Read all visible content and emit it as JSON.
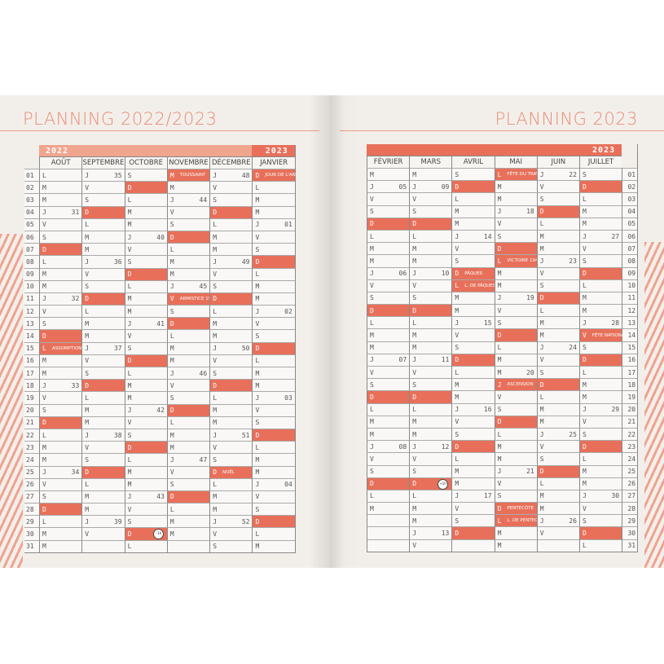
{
  "colors": {
    "accent": "#e8705a",
    "light_accent": "#f0a58e",
    "title": "#eb8c74"
  },
  "row_labels": [
    "01",
    "02",
    "03",
    "04",
    "05",
    "06",
    "07",
    "08",
    "09",
    "10",
    "11",
    "12",
    "13",
    "14",
    "15",
    "16",
    "17",
    "18",
    "19",
    "20",
    "21",
    "22",
    "23",
    "24",
    "25",
    "26",
    "27",
    "28",
    "29",
    "30",
    "31"
  ],
  "left": {
    "title": "PLANNING 2022/2023",
    "years": [
      "2022",
      "2023"
    ],
    "months": [
      {
        "name": "AOÛT",
        "days": [
          "L",
          "M",
          "M",
          "J 31",
          "V",
          "S",
          "D",
          "L",
          "M",
          "M",
          "J 32",
          "V",
          "S",
          "D",
          "L|ASSOMPTION",
          "M",
          "M",
          "J 33",
          "V",
          "S",
          "D",
          "L",
          "M",
          "M",
          "J 34",
          "V",
          "S",
          "D",
          "L",
          "M",
          "M"
        ]
      },
      {
        "name": "SEPTEMBRE",
        "days": [
          "J 35",
          "V",
          "S",
          "D",
          "L",
          "M",
          "M",
          "J 36",
          "V",
          "S",
          "D",
          "L",
          "M",
          "M",
          "J 37",
          "V",
          "S",
          "D",
          "L",
          "M",
          "M",
          "J 38",
          "V",
          "S",
          "D",
          "L",
          "M",
          "M",
          "J 39",
          "V"
        ]
      },
      {
        "name": "OCTOBRE",
        "days": [
          "S",
          "D",
          "L",
          "M",
          "M",
          "J 40",
          "V",
          "S",
          "D",
          "L",
          "M",
          "M",
          "J 41",
          "V",
          "S",
          "D",
          "L",
          "M",
          "M",
          "J 42",
          "V",
          "S",
          "D",
          "L",
          "M",
          "M",
          "J 43",
          "V",
          "S",
          "D^-1h",
          "L"
        ]
      },
      {
        "name": "NOVEMBRE",
        "days": [
          "M|TOUSSAINT",
          "M",
          "J 44",
          "V",
          "S",
          "D",
          "L",
          "M",
          "M",
          "J 45",
          "V|ARMISTICE 1918",
          "S",
          "D",
          "L",
          "M",
          "M",
          "J 46",
          "V",
          "S",
          "D",
          "L",
          "M",
          "M",
          "J 47",
          "V",
          "S",
          "D",
          "L",
          "M",
          "M"
        ]
      },
      {
        "name": "DÉCEMBRE",
        "days": [
          "J 48",
          "V",
          "S",
          "D",
          "L",
          "M",
          "M",
          "J 49",
          "V",
          "S",
          "D",
          "L",
          "M",
          "M",
          "J 50",
          "V",
          "S",
          "D",
          "L",
          "M",
          "M",
          "J 51",
          "V",
          "S",
          "D|NOËL",
          "L",
          "M",
          "M",
          "J 52",
          "V",
          "S"
        ]
      },
      {
        "name": "JANVIER",
        "days": [
          "D|JOUR DE L'AN",
          "L",
          "M",
          "M",
          "J 01",
          "V",
          "S",
          "D",
          "L",
          "M",
          "M",
          "J 02",
          "V",
          "S",
          "D",
          "L",
          "M",
          "M",
          "J 03",
          "V",
          "S",
          "D",
          "L",
          "M",
          "M",
          "J 04",
          "V",
          "S",
          "D",
          "L",
          "M"
        ]
      }
    ]
  },
  "right": {
    "title": "PLANNING 2023",
    "years": [
      "2023"
    ],
    "months": [
      {
        "name": "FÉVRIER",
        "days": [
          "M",
          "J 05",
          "V",
          "S",
          "D",
          "L",
          "M",
          "M",
          "J 06",
          "V",
          "S",
          "D",
          "L",
          "M",
          "M",
          "J 07",
          "V",
          "S",
          "D",
          "L",
          "M",
          "M",
          "J 08",
          "V",
          "S",
          "D",
          "L",
          "M"
        ]
      },
      {
        "name": "MARS",
        "days": [
          "M",
          "J 09",
          "V",
          "S",
          "D",
          "L",
          "M",
          "M",
          "J 10",
          "V",
          "S",
          "D",
          "L",
          "M",
          "M",
          "J 11",
          "V",
          "S",
          "D",
          "L",
          "M",
          "M",
          "J 12",
          "V",
          "S",
          "D^+1h",
          "L",
          "M",
          "M",
          "J 13",
          "V"
        ]
      },
      {
        "name": "AVRIL",
        "days": [
          "S",
          "D",
          "L",
          "M",
          "M",
          "J 14",
          "V",
          "S",
          "D|PÂQUES",
          "L|L. DE PÂQUES",
          "M",
          "M",
          "J 15",
          "V",
          "S",
          "D",
          "L",
          "M",
          "M",
          "J 16",
          "V",
          "S",
          "D",
          "L",
          "M",
          "M",
          "J 17",
          "V",
          "S",
          "D"
        ]
      },
      {
        "name": "MAI",
        "days": [
          "L|FÊTE DU TRAVAIL",
          "M",
          "M",
          "J 18",
          "V",
          "S",
          "D",
          "L|VICTOIRE 1945",
          "M",
          "M",
          "J 19",
          "V",
          "S",
          "D",
          "L",
          "M",
          "M 20",
          "J|ASCENSION",
          "V",
          "S",
          "D",
          "L",
          "M",
          "M",
          "J 21",
          "V",
          "S",
          "D|PENTECÔTE",
          "L|L. DE PENTECÔTE",
          "M",
          "M"
        ]
      },
      {
        "name": "JUIN",
        "days": [
          "J 22",
          "V",
          "S",
          "D",
          "L",
          "M",
          "M",
          "J 23",
          "V",
          "S",
          "D",
          "L",
          "M",
          "M",
          "J 24",
          "V",
          "S",
          "D",
          "L",
          "M",
          "M",
          "J 25",
          "V",
          "S",
          "D",
          "L",
          "M",
          "M",
          "J 26",
          "V"
        ]
      },
      {
        "name": "JUILLET",
        "days": [
          "S",
          "D",
          "L",
          "M",
          "M",
          "J 27",
          "V",
          "S",
          "D",
          "L",
          "M",
          "M",
          "J 28",
          "V|FÊTE NATIONALE",
          "S",
          "D",
          "L",
          "M",
          "M",
          "J 29",
          "V",
          "S",
          "D",
          "L",
          "M",
          "M",
          "J 30",
          "V",
          "S",
          "D",
          "L"
        ]
      }
    ]
  }
}
